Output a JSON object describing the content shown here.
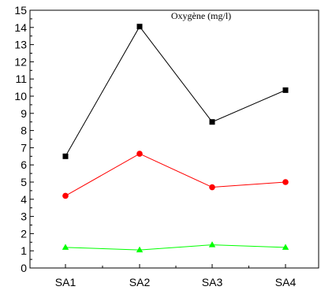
{
  "chart_data": {
    "type": "line",
    "title": "Oxygène (mg/l)",
    "xlabel": "",
    "ylabel": "",
    "categories": [
      "SA1",
      "SA2",
      "SA3",
      "SA4"
    ],
    "ylim": [
      0,
      15
    ],
    "yticks": [
      "0",
      "1",
      "2",
      "3",
      "4",
      "5",
      "6",
      "7",
      "8",
      "9",
      "10",
      "11",
      "12",
      "13",
      "14",
      "15"
    ],
    "grid": false,
    "series": [
      {
        "values": [
          6.5,
          14.05,
          8.5,
          10.35
        ],
        "color": "#000000",
        "marker": "square"
      },
      {
        "values": [
          4.2,
          6.65,
          4.7,
          5.0
        ],
        "color": "#ff0000",
        "marker": "circle"
      },
      {
        "values": [
          1.2,
          1.05,
          1.35,
          1.2
        ],
        "color": "#00ff00",
        "marker": "triangle"
      }
    ]
  }
}
